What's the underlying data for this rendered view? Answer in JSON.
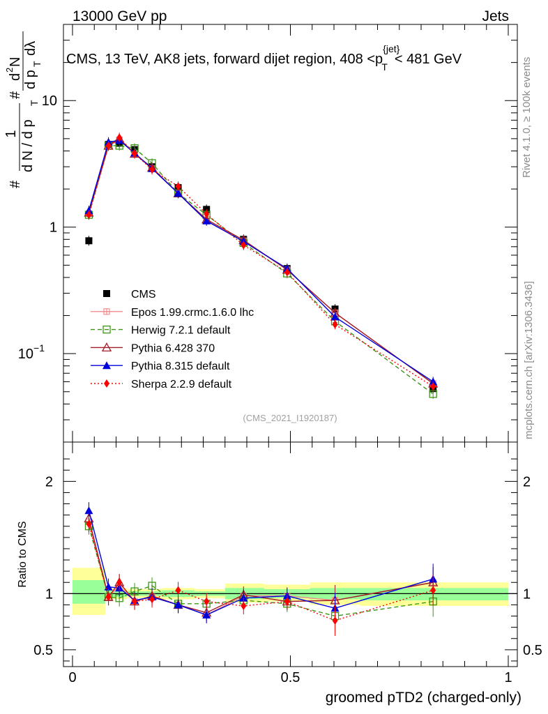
{
  "header": {
    "energy_label": "13000 GeV pp",
    "category_label": "Jets"
  },
  "plot_title": "CMS, 13 TeV, AK8 jets, forward dijet region, 408 <p",
  "plot_title_sup": "{jet}",
  "plot_title_sub": "T",
  "plot_title_tail": "< 481 GeV",
  "side_labels": {
    "rivet": "Rivet 4.1.0, ≥ 100k events",
    "mcplots": "mcplots.cern.ch [arXiv:1306.3436]"
  },
  "analysis_id": "(CMS_2021_I1920187)",
  "colors": {
    "cms": "#000000",
    "epos": "#f08c8c",
    "herwig": "#3c9614",
    "pythia6": "#a01e28",
    "pythia8": "#0000dc",
    "sherpa": "#ff0000",
    "band_yellow": "#ffff99",
    "band_green": "#99ff99"
  },
  "chart_data": [
    {
      "type": "line",
      "panel": "main",
      "yscale": "log",
      "ylabel": "# 1/(d N / d p_T #) d²N/(d p_T d λ)",
      "ylabel_parts": [
        "#",
        "1",
        "d N / d p",
        "T",
        "#",
        "d",
        "2",
        "N",
        "d p",
        "T",
        "dλ"
      ],
      "xlim": [
        0,
        1
      ],
      "ylim": [
        0.02,
        40
      ],
      "y_ticks": [
        {
          "value": 0.1,
          "label": "10",
          "sup": "−1"
        },
        {
          "value": 1,
          "label": "1"
        },
        {
          "value": 10,
          "label": "10"
        }
      ],
      "x": [
        0.0375,
        0.0825,
        0.1075,
        0.1425,
        0.1825,
        0.2425,
        0.3075,
        0.3925,
        0.4925,
        0.6025,
        0.8275
      ],
      "series": [
        {
          "name": "CMS",
          "key": "cms",
          "marker": "square-filled",
          "line": "none",
          "values": [
            0.78,
            4.5,
            4.6,
            4.1,
            3.0,
            2.05,
            1.38,
            0.8,
            0.47,
            0.225,
            0.053
          ]
        },
        {
          "name": "Epos 1.99.crmc.1.6.0 lhc",
          "key": "epos",
          "marker": "cross-square",
          "line": "solid",
          "values": [
            1.28,
            4.35,
            4.9,
            3.8,
            2.9,
            1.85,
            1.12,
            0.78,
            0.46,
            0.21,
            0.058
          ]
        },
        {
          "name": "Herwig 7.2.1 default",
          "key": "herwig",
          "marker": "square-open",
          "line": "dashed",
          "values": [
            1.25,
            4.4,
            4.4,
            4.2,
            3.2,
            1.85,
            1.25,
            0.75,
            0.43,
            0.18,
            0.048
          ]
        },
        {
          "name": "Pythia 6.428 370",
          "key": "pythia6",
          "marker": "triangle-open",
          "line": "solid",
          "values": [
            1.3,
            4.4,
            5.0,
            3.8,
            2.95,
            1.85,
            1.15,
            0.79,
            0.46,
            0.21,
            0.058
          ]
        },
        {
          "name": "Pythia 8.315 default",
          "key": "pythia8",
          "marker": "triangle-filled",
          "line": "solid",
          "values": [
            1.35,
            4.7,
            4.85,
            3.85,
            2.9,
            1.85,
            1.12,
            0.77,
            0.47,
            0.195,
            0.06
          ]
        },
        {
          "name": "Sherpa 2.2.9 default",
          "key": "sherpa",
          "marker": "diamond-filled",
          "line": "dotted",
          "values": [
            1.25,
            4.4,
            5.1,
            3.8,
            2.85,
            2.1,
            1.27,
            0.72,
            0.44,
            0.17,
            0.055
          ]
        }
      ]
    },
    {
      "type": "line",
      "panel": "ratio",
      "xlabel": "groomed pTD2 (charged-only)",
      "ylabel": "Ratio to CMS",
      "xlim": [
        0,
        1
      ],
      "ylim": [
        0.35,
        2.35
      ],
      "y_ticks": [
        0.5,
        1,
        2
      ],
      "y_tick_labels": [
        "0.5",
        "1",
        "2"
      ],
      "x_ticks": [
        0,
        0.5,
        1
      ],
      "x_tick_labels": [
        "0",
        "0.5",
        "1"
      ],
      "bin_edges": [
        0,
        0.075,
        0.09,
        0.125,
        0.16,
        0.205,
        0.28,
        0.35,
        0.44,
        0.545,
        0.66,
        1.0
      ],
      "band_total": [
        [
          0.81,
          1.23
        ],
        [
          0.95,
          1.05
        ],
        [
          0.95,
          1.05
        ],
        [
          0.96,
          1.04
        ],
        [
          0.96,
          1.04
        ],
        [
          0.95,
          1.05
        ],
        [
          0.96,
          1.04
        ],
        [
          0.92,
          1.09
        ],
        [
          0.93,
          1.08
        ],
        [
          0.9,
          1.1
        ],
        [
          0.89,
          1.1
        ]
      ],
      "band_stat": [
        [
          0.91,
          1.12
        ],
        [
          0.97,
          1.03
        ],
        [
          0.97,
          1.03
        ],
        [
          0.98,
          1.02
        ],
        [
          0.98,
          1.02
        ],
        [
          0.97,
          1.03
        ],
        [
          0.98,
          1.02
        ],
        [
          0.95,
          1.05
        ],
        [
          0.96,
          1.04
        ],
        [
          0.95,
          1.05
        ],
        [
          0.94,
          1.05
        ]
      ],
      "x": [
        0.0375,
        0.0825,
        0.1075,
        0.1425,
        0.1825,
        0.2425,
        0.3075,
        0.3925,
        0.4925,
        0.6025,
        0.8275
      ],
      "series": [
        {
          "name": "Epos 1.99.crmc.1.6.0 lhc",
          "key": "epos",
          "marker": "cross-square",
          "line": "solid",
          "values": [
            1.64,
            0.97,
            1.07,
            0.93,
            0.97,
            0.9,
            0.81,
            0.98,
            0.98,
            0.94,
            1.1
          ]
        },
        {
          "name": "Herwig 7.2.1 default",
          "key": "herwig",
          "marker": "square-open",
          "line": "dashed",
          "values": [
            1.6,
            0.97,
            0.96,
            1.02,
            1.07,
            0.91,
            0.91,
            0.94,
            0.91,
            0.8,
            0.93
          ]
        },
        {
          "name": "Pythia 6.428 370",
          "key": "pythia6",
          "marker": "triangle-open",
          "line": "solid",
          "values": [
            1.67,
            0.97,
            1.1,
            0.93,
            0.98,
            0.9,
            0.83,
            0.99,
            0.93,
            0.94,
            1.1
          ]
        },
        {
          "name": "Pythia 8.315 default",
          "key": "pythia8",
          "marker": "triangle-filled",
          "line": "solid",
          "values": [
            1.74,
            1.06,
            1.05,
            0.94,
            0.97,
            0.9,
            0.81,
            0.96,
            0.98,
            0.87,
            1.13
          ]
        },
        {
          "name": "Sherpa 2.2.9 default",
          "key": "sherpa",
          "marker": "diamond-filled",
          "line": "dotted",
          "values": [
            1.62,
            0.97,
            1.1,
            0.93,
            0.95,
            1.03,
            0.93,
            0.89,
            0.93,
            0.76,
            1.03
          ]
        }
      ]
    }
  ],
  "legend": [
    {
      "label": "CMS",
      "key": "cms",
      "marker": "square-filled",
      "line": "none"
    },
    {
      "label": "Epos 1.99.crmc.1.6.0 lhc",
      "key": "epos",
      "marker": "cross-square",
      "line": "solid"
    },
    {
      "label": "Herwig 7.2.1 default",
      "key": "herwig",
      "marker": "square-open",
      "line": "dashed"
    },
    {
      "label": "Pythia 6.428 370",
      "key": "pythia6",
      "marker": "triangle-open",
      "line": "solid"
    },
    {
      "label": "Pythia 8.315 default",
      "key": "pythia8",
      "marker": "triangle-filled",
      "line": "solid"
    },
    {
      "label": "Sherpa 2.2.9 default",
      "key": "sherpa",
      "marker": "diamond-filled",
      "line": "dotted"
    }
  ]
}
